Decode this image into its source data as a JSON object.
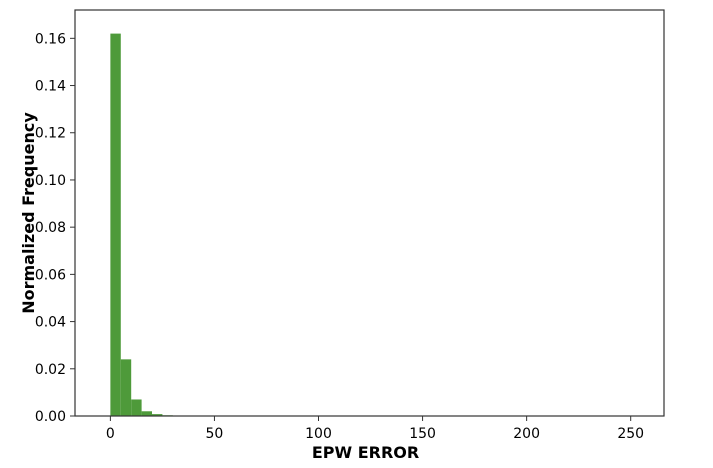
{
  "chart_data": {
    "type": "bar",
    "xlabel": "EPW ERROR",
    "ylabel": "Normalized Frequency",
    "xlim": [
      -17,
      266
    ],
    "ylim": [
      0,
      0.172
    ],
    "x_ticks": [
      0,
      50,
      100,
      150,
      200,
      250
    ],
    "x_tick_labels": [
      "0",
      "50",
      "100",
      "150",
      "200",
      "250"
    ],
    "y_ticks": [
      0.0,
      0.02,
      0.04,
      0.06,
      0.08,
      0.1,
      0.12,
      0.14,
      0.16
    ],
    "y_tick_labels": [
      "0.00",
      "0.02",
      "0.04",
      "0.06",
      "0.08",
      "0.10",
      "0.12",
      "0.14",
      "0.16"
    ],
    "grid": false,
    "bar_color": "#4e9a3a",
    "bins": [
      {
        "x0": 0,
        "x1": 5,
        "value": 0.162
      },
      {
        "x0": 5,
        "x1": 10,
        "value": 0.024
      },
      {
        "x0": 10,
        "x1": 15,
        "value": 0.007
      },
      {
        "x0": 15,
        "x1": 20,
        "value": 0.002
      },
      {
        "x0": 20,
        "x1": 25,
        "value": 0.0008
      },
      {
        "x0": 25,
        "x1": 30,
        "value": 0.0003
      }
    ]
  }
}
